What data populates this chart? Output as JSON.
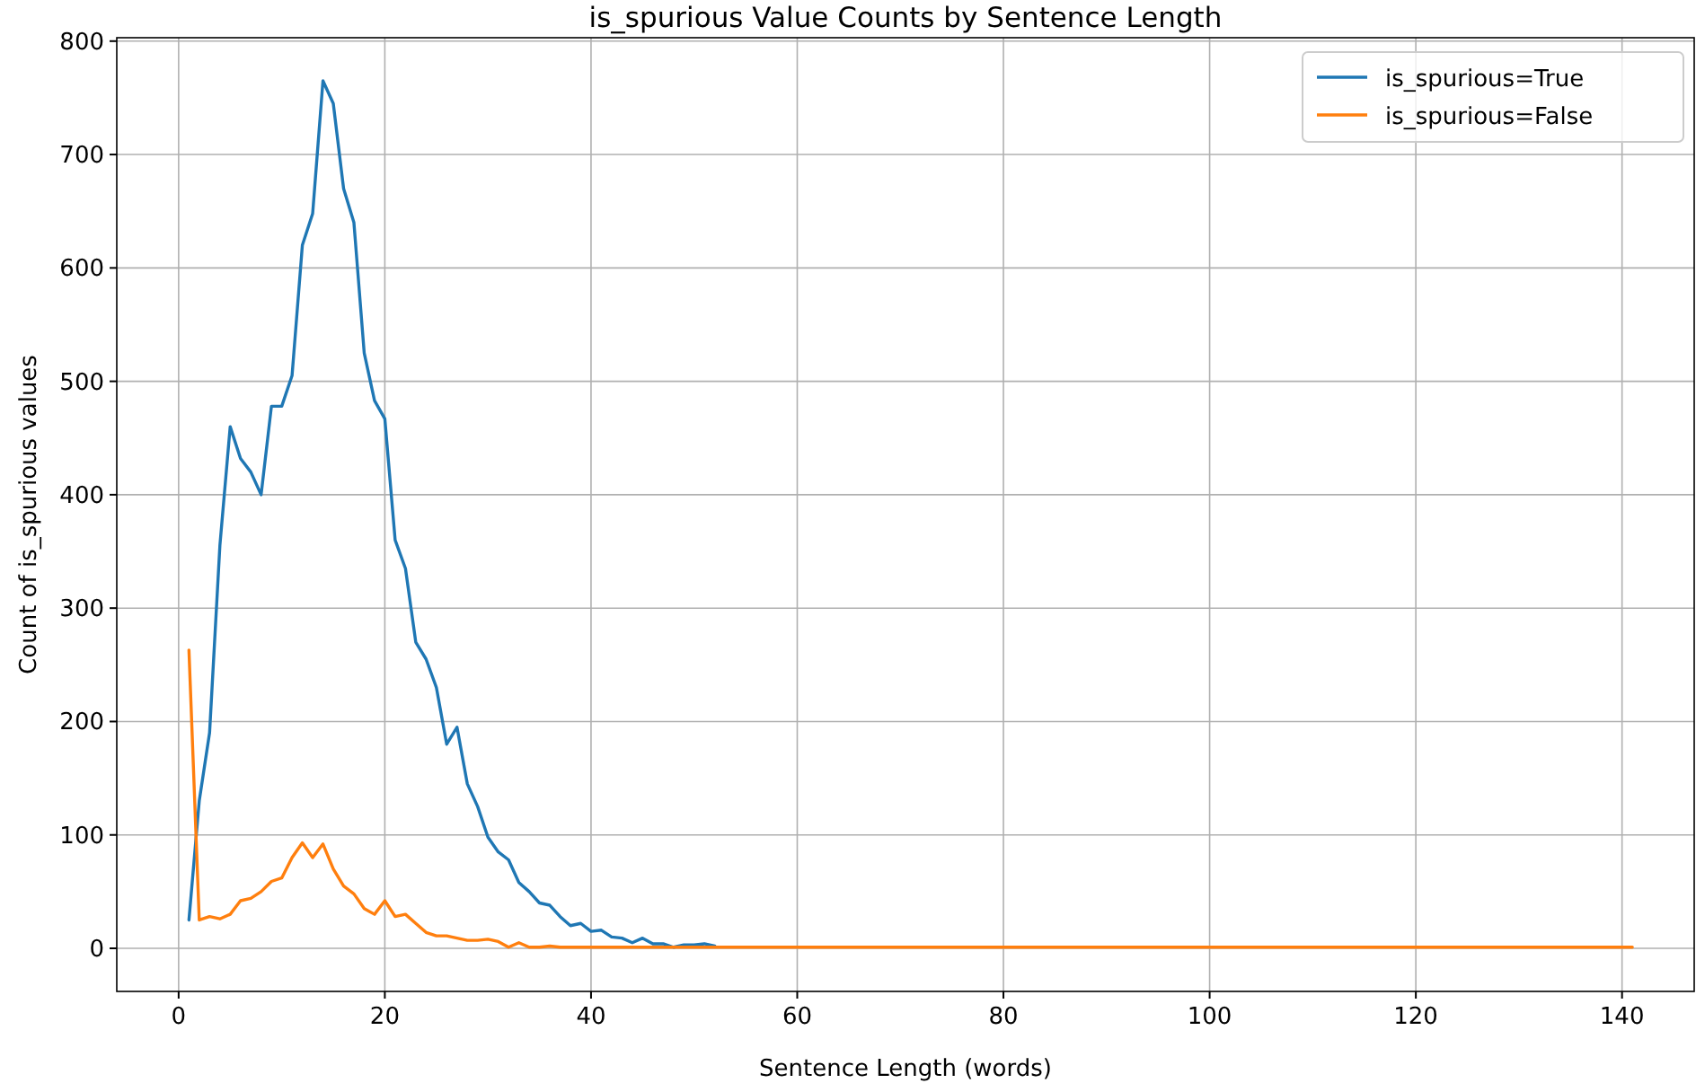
{
  "chart_data": {
    "type": "line",
    "title": "is_spurious Value Counts by Sentence Length",
    "xlabel": "Sentence Length (words)",
    "ylabel": "Count of is_spurious values",
    "x": [
      1,
      2,
      3,
      4,
      5,
      6,
      7,
      8,
      9,
      10,
      11,
      12,
      13,
      14,
      15,
      16,
      17,
      18,
      19,
      20,
      21,
      22,
      23,
      24,
      25,
      26,
      27,
      28,
      29,
      30,
      31,
      32,
      33,
      34,
      35,
      36,
      37,
      38,
      39,
      40,
      41,
      42,
      43,
      44,
      45,
      46,
      47,
      48,
      49,
      50,
      51,
      52,
      53,
      54,
      55,
      56,
      57,
      58,
      59,
      60,
      61,
      62,
      63,
      64,
      65,
      66,
      67,
      68,
      69,
      70,
      71,
      72,
      73,
      74,
      75,
      76,
      77,
      78,
      79,
      80,
      81,
      82,
      83,
      84,
      85,
      86,
      87,
      88,
      89,
      90,
      91,
      92,
      93,
      94,
      95,
      96,
      97,
      98,
      99,
      100,
      101,
      102,
      103,
      104,
      105,
      106,
      107,
      108,
      109,
      110,
      111,
      112,
      113,
      114,
      115,
      116,
      117,
      118,
      119,
      120,
      121,
      122,
      123,
      124,
      125,
      126,
      127,
      128,
      129,
      130,
      131,
      132,
      133,
      134,
      135,
      136,
      137,
      138,
      139,
      140,
      141
    ],
    "series": [
      {
        "name": "is_spurious=True",
        "color": "#1f77b4",
        "values": [
          25,
          130,
          190,
          355,
          460,
          432,
          420,
          400,
          478,
          478,
          505,
          620,
          648,
          765,
          745,
          670,
          640,
          525,
          483,
          467,
          360,
          335,
          270,
          255,
          230,
          180,
          195,
          145,
          125,
          98,
          85,
          78,
          58,
          50,
          40,
          38,
          28,
          20,
          22,
          15,
          16,
          10,
          9,
          5,
          9,
          4,
          4,
          1,
          3,
          3,
          4,
          2,
          null,
          null,
          null,
          null,
          null,
          null,
          null,
          null,
          null,
          null,
          null,
          null,
          null,
          null,
          null,
          null,
          null,
          null,
          null,
          null,
          null,
          null,
          null,
          null,
          null,
          null,
          null,
          null,
          null,
          null,
          null,
          null,
          null,
          null,
          null,
          null,
          null,
          null,
          null,
          null,
          null,
          null,
          null,
          null,
          null,
          null,
          null,
          null,
          null,
          null,
          null,
          null,
          null,
          null,
          null,
          null,
          null,
          null,
          null,
          null,
          null,
          null,
          null,
          null,
          null,
          null,
          null,
          null,
          null,
          null,
          null,
          null,
          null,
          null,
          null,
          null,
          null,
          null,
          null,
          null,
          null,
          null,
          null,
          null,
          null,
          null,
          null,
          null,
          null
        ]
      },
      {
        "name": "is_spurious=False",
        "color": "#ff7f0e",
        "values": [
          263,
          25,
          28,
          26,
          30,
          42,
          44,
          50,
          59,
          62,
          80,
          93,
          80,
          92,
          70,
          55,
          48,
          35,
          30,
          42,
          28,
          30,
          22,
          14,
          11,
          11,
          9,
          7,
          7,
          8,
          6,
          1,
          5,
          1,
          1,
          2,
          1,
          1,
          1,
          1,
          1,
          1,
          1,
          1,
          1,
          1,
          1,
          1,
          1,
          1,
          1,
          1,
          1,
          1,
          1,
          1,
          1,
          1,
          1,
          1,
          1,
          1,
          1,
          1,
          1,
          1,
          1,
          1,
          1,
          1,
          1,
          1,
          1,
          1,
          1,
          1,
          1,
          1,
          1,
          1,
          1,
          1,
          1,
          1,
          1,
          1,
          1,
          1,
          1,
          1,
          1,
          1,
          1,
          1,
          1,
          1,
          1,
          1,
          1,
          1,
          1,
          1,
          1,
          1,
          1,
          1,
          1,
          1,
          1,
          1,
          1,
          1,
          1,
          1,
          1,
          1,
          1,
          1,
          1,
          1,
          1,
          1,
          1,
          1,
          1,
          1,
          1,
          1,
          1,
          1,
          1,
          1,
          1,
          1,
          1,
          1,
          1,
          1,
          1,
          1,
          1
        ]
      }
    ],
    "xlim": [
      -6,
      147
    ],
    "xticks": [
      0,
      20,
      40,
      60,
      80,
      100,
      120,
      140
    ],
    "ylim": [
      -38,
      803
    ],
    "yticks": [
      0,
      100,
      200,
      300,
      400,
      500,
      600,
      700,
      800
    ],
    "grid": true,
    "legend": "top right",
    "marker": "none",
    "line_style": "solid"
  }
}
